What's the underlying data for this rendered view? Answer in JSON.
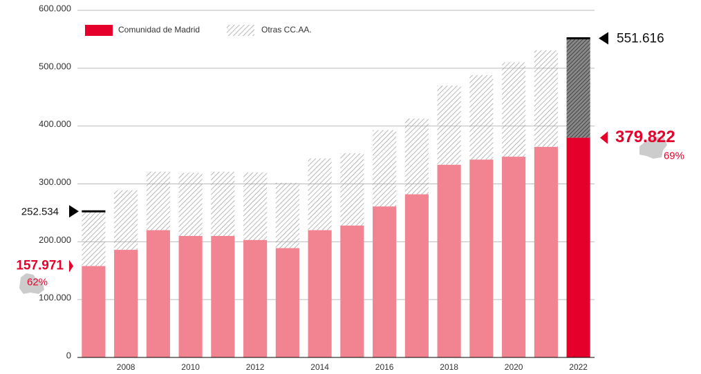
{
  "chart_data": {
    "type": "stacked_bar",
    "categories": [
      null,
      "2008",
      null,
      "2010",
      null,
      "2012",
      null,
      "2014",
      null,
      "2016",
      null,
      "2018",
      null,
      "2020",
      null,
      "2022"
    ],
    "series": [
      {
        "name": "Comunidad de Madrid",
        "color": "#f28391",
        "values": [
          157971,
          186000,
          220000,
          210000,
          210000,
          203000,
          189000,
          220000,
          228000,
          261000,
          282000,
          333000,
          342000,
          347000,
          364000,
          379822
        ],
        "value_labels": [
          "157.971",
          null,
          null,
          null,
          null,
          null,
          null,
          null,
          null,
          null,
          null,
          null,
          null,
          null,
          null,
          "379.822"
        ]
      },
      {
        "name": "Otras CC.AA.",
        "color": "#999999",
        "values": [
          94563,
          103000,
          101000,
          109000,
          111000,
          117000,
          113000,
          124000,
          125000,
          132000,
          131000,
          137000,
          146000,
          163000,
          167000,
          171794
        ]
      }
    ],
    "highlight": {
      "index": 15,
      "color": "#e4002b",
      "hatch_color": "#333333"
    },
    "totals": [
      {
        "value": 252534,
        "label": "252.534"
      },
      {
        "value": 551616,
        "label": "551.616"
      }
    ],
    "shares": [
      "62%",
      "69%"
    ],
    "ylim": [
      0,
      600000
    ],
    "yticks": [
      0,
      {
        "value": 100000,
        "label": "100.000"
      },
      {
        "value": 200000,
        "label": "200.000"
      },
      {
        "value": 300000,
        "label": "300.000"
      },
      {
        "value": 400000,
        "label": "400.000"
      },
      {
        "value": 500000,
        "label": "500.000"
      },
      {
        "value": 600000,
        "label": "600.000"
      }
    ],
    "grid": true
  }
}
